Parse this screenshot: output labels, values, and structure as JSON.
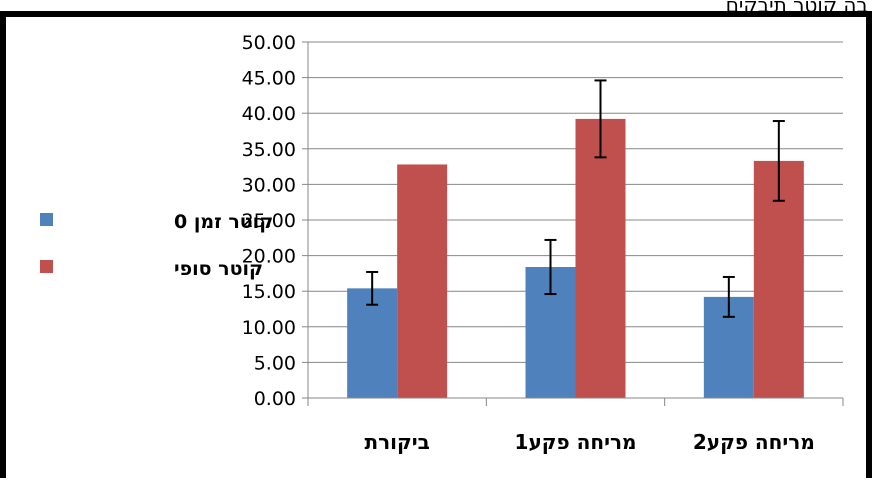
{
  "caption": "בה קוטר תיבקים",
  "chart_data": {
    "type": "bar",
    "categories": [
      "ביקורת",
      "מריחה פקע1",
      "מריחה פקע2"
    ],
    "series": [
      {
        "name": "קוטר זמן 0",
        "color": "#4F81BD",
        "values": [
          15.4,
          18.4,
          14.2
        ],
        "error": [
          2.3,
          3.8,
          2.8
        ]
      },
      {
        "name": "קוטר סופי",
        "color": "#C0504D",
        "values": [
          32.8,
          39.2,
          33.3
        ],
        "error": [
          null,
          5.4,
          5.6
        ]
      }
    ],
    "ylim": [
      0,
      50
    ],
    "yticks": [
      "0.00",
      "5.00",
      "10.00",
      "15.00",
      "20.00",
      "25.00",
      "30.00",
      "35.00",
      "40.00",
      "45.00",
      "50.00"
    ],
    "grid": true,
    "legend_position": "left"
  }
}
